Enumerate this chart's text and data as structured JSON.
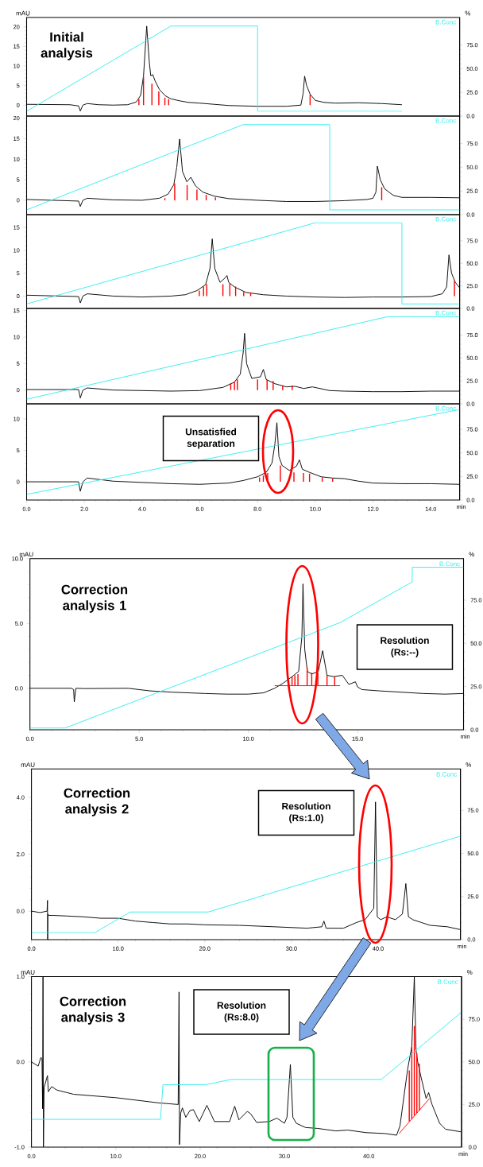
{
  "chart_data": [
    {
      "type": "line",
      "title": "Initial analysis",
      "ylabel": "mAU",
      "y2label": "%",
      "legend": "top right",
      "tick_labels": [
        "y",
        "y2"
      ],
      "xlim": [
        0,
        15
      ],
      "ylim": [
        -2.8,
        22.4
      ],
      "y2lim": [
        0,
        104
      ],
      "yticks": [
        0,
        5,
        10,
        15,
        20
      ],
      "y2ticks": [
        {
          "value": 0,
          "label": "0.0"
        },
        {
          "value": 25,
          "label": "25.0"
        },
        {
          "value": 50,
          "label": "50.0"
        },
        {
          "value": 75,
          "label": "75.0"
        }
      ],
      "series": [
        {
          "color": "#000000",
          "x": [
            0,
            1.5,
            1.8,
            1.86,
            1.95,
            2.1,
            2.5,
            3.0,
            3.5,
            3.8,
            3.95,
            4.05,
            4.16,
            4.25,
            4.3,
            4.37,
            4.45,
            4.6,
            4.8,
            5.0,
            5.3,
            5.6,
            6.0,
            6.5,
            7.0,
            8.0,
            9.0,
            9.5,
            9.58,
            9.63,
            9.7,
            9.82,
            10.0,
            10.3,
            10.7,
            11.5,
            12.3,
            13.0
          ],
          "values": [
            0.2,
            0.1,
            -0.2,
            -1.5,
            0,
            0.4,
            0.1,
            0,
            0.1,
            0.8,
            2.5,
            7.5,
            20.2,
            11,
            7.5,
            7.8,
            6.2,
            4,
            2.4,
            1.6,
            1.1,
            0.7,
            0.5,
            0.2,
            -0.1,
            -0.3,
            -0.3,
            0.0,
            3.0,
            7.4,
            5.0,
            2.8,
            1.2,
            0.7,
            0.5,
            0.6,
            0.4,
            0.1
          ]
        },
        {
          "name": "B.Conc",
          "axis": "y2",
          "color": "#33eeee",
          "x": [
            0,
            5,
            8,
            8,
            13
          ],
          "values": [
            5,
            95,
            95,
            5,
            5
          ]
        },
        {
          "type": "bar",
          "color": "#ff0000",
          "x": [
            3.89,
            4.05,
            4.34,
            4.58,
            4.79,
            4.92,
            9.82
          ],
          "values": [
            1.5,
            7.3,
            5.5,
            3.5,
            1.9,
            1.5,
            2.7
          ]
        }
      ]
    },
    {
      "type": "line",
      "legend": "top right",
      "tick_labels": [
        "y",
        "y2"
      ],
      "xlim": [
        0,
        15
      ],
      "ylim": [
        -3.5,
        20.5
      ],
      "y2lim": [
        0,
        104
      ],
      "yticks": [
        0,
        5,
        10,
        15,
        20
      ],
      "y2ticks": [
        {
          "value": 0,
          "label": "0.0"
        },
        {
          "value": 25,
          "label": "25.0"
        },
        {
          "value": 50,
          "label": "50.0"
        },
        {
          "value": 75,
          "label": "75.0"
        }
      ],
      "series": [
        {
          "color": "#000000",
          "x": [
            0,
            1.8,
            1.86,
            1.95,
            2.1,
            3,
            4,
            4.6,
            4.9,
            5.1,
            5.2,
            5.3,
            5.4,
            5.55,
            5.69,
            5.85,
            6.1,
            6.5,
            7,
            8,
            9,
            10,
            11,
            11.8,
            12.0,
            12.1,
            12.15,
            12.25,
            12.4,
            12.7,
            13,
            14,
            15
          ],
          "values": [
            0.2,
            -0.2,
            -1.5,
            0,
            0.5,
            0.1,
            0,
            0.5,
            1.5,
            3.8,
            8,
            14.9,
            7,
            4.5,
            5.6,
            3.5,
            2,
            1,
            0.4,
            0,
            -0.3,
            -0.3,
            -0.1,
            0.2,
            0.5,
            2,
            8.3,
            5,
            2.8,
            1.2,
            0.7,
            0.7,
            0.6
          ]
        },
        {
          "name": "B.Conc",
          "axis": "y2",
          "color": "#33eeee",
          "x": [
            0,
            7.5,
            10.5,
            10.5,
            15
          ],
          "values": [
            5,
            95,
            95,
            5,
            5
          ]
        },
        {
          "type": "bar",
          "color": "#ff0000",
          "x": [
            4.79,
            5.13,
            5.56,
            5.9,
            6.22,
            6.54,
            12.3
          ],
          "values": [
            0.5,
            4.1,
            3.7,
            2.6,
            1.3,
            0.7,
            3.2
          ]
        }
      ]
    },
    {
      "type": "line",
      "legend": "top right",
      "tick_labels": [
        "y",
        "y2"
      ],
      "xlim": [
        0,
        15
      ],
      "ylim": [
        -2.7,
        17.8
      ],
      "y2lim": [
        0,
        104
      ],
      "yticks": [
        0,
        5,
        10,
        15
      ],
      "y2ticks": [
        {
          "value": 0,
          "label": "0.0"
        },
        {
          "value": 25,
          "label": "25.0"
        },
        {
          "value": 50,
          "label": "50.0"
        },
        {
          "value": 75,
          "label": "75.0"
        }
      ],
      "series": [
        {
          "color": "#000000",
          "x": [
            0,
            1.8,
            1.86,
            1.95,
            2.1,
            3,
            4,
            5,
            5.5,
            5.9,
            6.2,
            6.35,
            6.43,
            6.52,
            6.7,
            6.88,
            6.94,
            7.0,
            7.2,
            7.6,
            8.2,
            9,
            10,
            11,
            12,
            13,
            14,
            14.4,
            14.55,
            14.63,
            14.72,
            14.85,
            15
          ],
          "values": [
            0.2,
            -0.1,
            -1.5,
            0,
            0.5,
            0,
            -0.2,
            0,
            0.3,
            1.2,
            2.5,
            6,
            12.5,
            6,
            3,
            4,
            4.5,
            3,
            2,
            0.8,
            0.3,
            0,
            -0.2,
            -0.3,
            -0.2,
            -0.2,
            -0.1,
            0.5,
            2,
            9,
            5,
            3,
            1.8
          ]
        },
        {
          "name": "B.Conc",
          "axis": "y2",
          "color": "#33eeee",
          "x": [
            0,
            10,
            13,
            13,
            15
          ],
          "values": [
            5,
            95,
            95,
            5,
            5
          ]
        },
        {
          "type": "bar",
          "color": "#ff0000",
          "x": [
            5.98,
            6.13,
            6.24,
            6.8,
            7.04,
            7.24,
            7.52,
            7.76,
            14.82
          ],
          "values": [
            1.2,
            2.1,
            2.6,
            2.6,
            2.8,
            2.1,
            0.9,
            0.8,
            3.4
          ]
        }
      ]
    },
    {
      "type": "line",
      "legend": "top right",
      "tick_labels": [
        "y",
        "y2"
      ],
      "xlim": [
        0,
        15
      ],
      "ylim": [
        -2.6,
        15.4
      ],
      "y2lim": [
        0,
        104
      ],
      "yticks": [
        0,
        5,
        10,
        15
      ],
      "y2ticks": [
        {
          "value": 0,
          "label": "0.0"
        },
        {
          "value": 25,
          "label": "25.0"
        },
        {
          "value": 50,
          "label": "50.0"
        },
        {
          "value": 75,
          "label": "75.0"
        }
      ],
      "series": [
        {
          "color": "#000000",
          "x": [
            0,
            1.8,
            1.86,
            1.95,
            2.1,
            3,
            4,
            5,
            6,
            6.8,
            7.2,
            7.4,
            7.5,
            7.55,
            7.62,
            7.8,
            8.1,
            8.2,
            8.3,
            8.6,
            9,
            9.3,
            9.6,
            9.9,
            10.5,
            11,
            12,
            13,
            14,
            15
          ],
          "values": [
            0.1,
            0.1,
            -1.5,
            0,
            0.4,
            0,
            -0.1,
            -0.2,
            -0.1,
            0.5,
            1.5,
            3,
            7,
            10.7,
            5,
            2.2,
            2.5,
            3.9,
            2,
            1.2,
            0.6,
            0.7,
            0.3,
            0.6,
            -0.1,
            -0.2,
            -0.3,
            -0.3,
            -0.2,
            -0.2
          ]
        },
        {
          "name": "B.Conc",
          "axis": "y2",
          "color": "#33eeee",
          "x": [
            0,
            12.5,
            15
          ],
          "values": [
            5,
            95,
            95
          ]
        },
        {
          "type": "bar",
          "color": "#ff0000",
          "x": [
            7.07,
            7.2,
            7.3,
            8.0,
            8.33,
            8.54,
            8.87,
            9.2
          ],
          "values": [
            1.3,
            1.6,
            2,
            2,
            1.9,
            1.7,
            0.9,
            0.9
          ]
        }
      ]
    },
    {
      "type": "line",
      "xlabel": "min",
      "legend": "top right",
      "annotations": [
        "Unsatisfied separation"
      ],
      "xlim": [
        0,
        15
      ],
      "ylim": [
        -2.9,
        12.4
      ],
      "y2lim": [
        0,
        102
      ],
      "xticks": [
        {
          "value": 0,
          "label": "0.0"
        },
        {
          "value": 2,
          "label": "2.0"
        },
        {
          "value": 4,
          "label": "4.0"
        },
        {
          "value": 6,
          "label": "6.0"
        },
        {
          "value": 8,
          "label": "8.0"
        },
        {
          "value": 10,
          "label": "10.0"
        },
        {
          "value": 12,
          "label": "12.0"
        },
        {
          "value": 14,
          "label": "14.0"
        }
      ],
      "yticks": [
        0,
        5,
        10
      ],
      "y2ticks": [
        {
          "value": 0,
          "label": "0.0"
        },
        {
          "value": 25,
          "label": "25.0"
        },
        {
          "value": 50,
          "label": "50.0"
        },
        {
          "value": 75,
          "label": "75.0"
        }
      ],
      "series": [
        {
          "color": "#000000",
          "x": [
            0,
            1.8,
            1.86,
            1.95,
            2.1,
            3,
            4,
            5,
            6,
            7,
            7.5,
            8,
            8.3,
            8.5,
            8.6,
            8.67,
            8.74,
            8.85,
            9.1,
            9.35,
            9.45,
            9.55,
            9.8,
            10.2,
            10.6,
            11,
            11.5,
            12,
            13,
            14,
            15
          ],
          "values": [
            0,
            0,
            -1.5,
            0,
            0.6,
            0.1,
            -0.1,
            -0.3,
            -0.4,
            -0.2,
            0.2,
            0.8,
            1.5,
            3,
            6,
            9.4,
            4,
            2.6,
            1.8,
            2.5,
            3.5,
            2,
            1.5,
            0.8,
            0.6,
            0.5,
            0.1,
            -0.2,
            -0.3,
            -0.3,
            -0.4
          ]
        },
        {
          "name": "B.Conc",
          "axis": "y2",
          "color": "#33eeee",
          "x": [
            0,
            15
          ],
          "values": [
            6,
            96
          ]
        },
        {
          "type": "bar",
          "color": "#ff0000",
          "x": [
            8.07,
            8.2,
            8.35,
            8.79,
            9.26,
            9.59,
            9.8,
            10.24,
            10.6
          ],
          "values": [
            0.7,
            1.0,
            1.4,
            2.6,
            1.5,
            1.4,
            1.3,
            0.7,
            0.5
          ]
        }
      ]
    },
    {
      "type": "line",
      "title": "Correction analysis 1",
      "xlabel": "min",
      "ylabel": "mAU",
      "y2label": "%",
      "legend": "top right",
      "annotations": [
        "Resolution (Rs:--)"
      ],
      "xlim": [
        0,
        19.85
      ],
      "ylim": [
        -3.2,
        10
      ],
      "y2lim": [
        0,
        99
      ],
      "xticks": [
        {
          "value": 0,
          "label": "0.0"
        },
        {
          "value": 5,
          "label": "5.0"
        },
        {
          "value": 10,
          "label": "10.0"
        },
        {
          "value": 15,
          "label": "15.0"
        }
      ],
      "yticks": [
        {
          "value": 0,
          "label": "0.0"
        },
        {
          "value": 5,
          "label": "5.0"
        },
        {
          "value": 10,
          "label": "10.0"
        }
      ],
      "y2ticks": [
        {
          "value": 0,
          "label": "0.0"
        },
        {
          "value": 25,
          "label": "25.0"
        },
        {
          "value": 50,
          "label": "50.0"
        },
        {
          "value": 75,
          "label": "75.0"
        }
      ],
      "series": [
        {
          "color": "#000000",
          "x": [
            0,
            1.9,
            2.0,
            2.03,
            2.1,
            2.5,
            4.5,
            5.5,
            6.5,
            8,
            9,
            10,
            10.7,
            11.2,
            11.6,
            12.0,
            12.3,
            12.45,
            12.5,
            12.58,
            12.7,
            12.9,
            13.2,
            13.4,
            13.6,
            13.9,
            14.3,
            14.6,
            14.9,
            15.0,
            15.2,
            16,
            17,
            18,
            19,
            19.85
          ],
          "values": [
            0,
            0,
            -0.1,
            -1.05,
            0,
            -0.02,
            0,
            -0.2,
            -0.3,
            -0.4,
            -0.45,
            -0.45,
            -0.35,
            0.0,
            0.4,
            0.9,
            1.3,
            4,
            8.05,
            3,
            1.3,
            1.1,
            1.3,
            2.9,
            1.0,
            0.9,
            1.0,
            0.3,
            0.5,
            0.1,
            -0.1,
            -0.2,
            -0.3,
            -0.4,
            -0.45,
            -0.4
          ]
        },
        {
          "name": "B.Conc",
          "axis": "y2",
          "color": "#33eeee",
          "x": [
            0,
            1.6,
            14.2,
            17.5,
            17.5,
            19.85
          ],
          "values": [
            1,
            1,
            62,
            85.5,
            94,
            94
          ]
        },
        {
          "color": "#ff0000",
          "x": [
            11.2,
            14.2
          ],
          "values": [
            0.2,
            0.2
          ]
        },
        {
          "type": "bar",
          "color": "#ff0000",
          "x": [
            12.0,
            12.13,
            12.27,
            12.69,
            12.9,
            13.18,
            13.6,
            13.95
          ],
          "base": [
            0.2,
            0.2,
            0.2,
            0.2,
            0.2,
            0.2,
            0.2,
            0.2
          ],
          "values": [
            0.7,
            0.8,
            0.9,
            1.4,
            1.0,
            1.0,
            0.8,
            0.7
          ]
        }
      ]
    },
    {
      "type": "line",
      "title": "Correction analysis 2",
      "xlabel": "min",
      "ylabel": "mAU",
      "y2label": "%",
      "legend": "top right",
      "annotations": [
        "Resolution (Rs:1.0)"
      ],
      "xlim": [
        0,
        49.5
      ],
      "ylim": [
        -1,
        5
      ],
      "y2lim": [
        0,
        99
      ],
      "xticks": [
        {
          "value": 0,
          "label": "0.0"
        },
        {
          "value": 10,
          "label": "10.0"
        },
        {
          "value": 20,
          "label": "20.0"
        },
        {
          "value": 30,
          "label": "30.0"
        },
        {
          "value": 40,
          "label": "40.0"
        }
      ],
      "yticks": [
        {
          "value": 0,
          "label": "0.0"
        },
        {
          "value": 2,
          "label": "2.0"
        },
        {
          "value": 4,
          "label": "4.0"
        }
      ],
      "y2ticks": [
        {
          "value": 0,
          "label": "0.0"
        },
        {
          "value": 25,
          "label": "25.0"
        },
        {
          "value": 50,
          "label": "50.0"
        },
        {
          "value": 75,
          "label": "75.0"
        }
      ],
      "series": [
        {
          "color": "#000000",
          "x": [
            0,
            1.0,
            1.8,
            1.85,
            1.87,
            1.9,
            2.0,
            2.5,
            4,
            6,
            8,
            10,
            12,
            14,
            16,
            18,
            20,
            24,
            28,
            31.8,
            33.5,
            33.75,
            34,
            36,
            37.5,
            38.5,
            39.0,
            39.5,
            39.7,
            39.9,
            40.3,
            41,
            42,
            42.8,
            43.2,
            43.5,
            44,
            45,
            46,
            48,
            49.5
          ],
          "values": [
            0,
            -0.05,
            0.0,
            0.38,
            -1.0,
            -0.1,
            -0.15,
            -0.15,
            -0.17,
            -0.2,
            -0.25,
            -0.25,
            -0.35,
            -0.4,
            -0.45,
            -0.45,
            -0.48,
            -0.5,
            -0.55,
            -0.6,
            -0.55,
            -0.35,
            -0.6,
            -0.6,
            -0.4,
            -0.3,
            -0.1,
            0.1,
            3.84,
            -0.2,
            -0.3,
            -0.2,
            -0.3,
            -0.1,
            0.97,
            -0.2,
            -0.3,
            -0.4,
            -0.5,
            -0.55,
            -0.65
          ]
        },
        {
          "name": "B.Conc",
          "axis": "y2",
          "color": "#33eeee",
          "x": [
            0,
            7.3,
            11.4,
            20.4,
            49.5
          ],
          "values": [
            4,
            4,
            16,
            16,
            60
          ]
        }
      ]
    },
    {
      "type": "line",
      "title": "Correction analysis 3",
      "xlabel": "min",
      "ylabel": "mAU",
      "y2label": "%",
      "legend": "top right",
      "annotations": [
        "Resolution (Rs:8.0)"
      ],
      "xlim": [
        0,
        51
      ],
      "ylim": [
        -1,
        1
      ],
      "y2lim": [
        0,
        100
      ],
      "xticks": [
        {
          "value": 0,
          "label": "0.0"
        },
        {
          "value": 10,
          "label": "10.0"
        },
        {
          "value": 20,
          "label": "20.0"
        },
        {
          "value": 30,
          "label": "30.0"
        },
        {
          "value": 40,
          "label": "40.0"
        }
      ],
      "yticks": [
        {
          "value": -1,
          "label": "-1.0"
        },
        {
          "value": 0,
          "label": "0.0"
        },
        {
          "value": 1,
          "label": "1.0"
        }
      ],
      "y2ticks": [
        {
          "value": 0,
          "label": "0.0"
        },
        {
          "value": 25,
          "label": "25.0"
        },
        {
          "value": 50,
          "label": "50.0"
        },
        {
          "value": 75,
          "label": "75.0"
        }
      ],
      "series": [
        {
          "color": "#000000",
          "x": [
            0,
            0.8,
            1.1,
            1.25,
            1.32,
            1.37,
            1.42,
            1.5,
            1.9,
            2.0,
            2.4,
            3,
            5,
            10,
            15,
            17.4,
            17.5,
            17.55,
            17.7,
            17.9,
            18.3,
            18.8,
            19.2,
            19.9,
            20.8,
            21.7,
            23.5,
            24.1,
            24.6,
            25.6,
            26.0,
            26.7,
            28.2,
            29.1,
            30.0,
            30.3,
            30.7,
            31.0,
            31.4,
            32.5,
            33.9,
            36.1,
            37.5,
            39.7,
            41.9,
            43.3,
            43.7,
            44.6,
            45.1,
            45.4,
            45.6,
            45.8,
            46.2,
            46.8,
            47.1,
            47.5,
            48.4,
            49.1,
            50.9
          ],
          "values": [
            0,
            -0.05,
            0.05,
            0.04,
            -0.55,
            1.0,
            -1.0,
            -0.3,
            -0.16,
            -0.35,
            -0.29,
            -0.33,
            -0.38,
            -0.42,
            -0.48,
            -0.5,
            0.82,
            -0.97,
            -0.6,
            -0.54,
            -0.65,
            -0.57,
            -0.56,
            -0.7,
            -0.51,
            -0.7,
            -0.7,
            -0.52,
            -0.68,
            -0.58,
            -0.61,
            -0.71,
            -0.7,
            -0.66,
            -0.72,
            -0.65,
            -0.03,
            -0.65,
            -0.72,
            -0.77,
            -0.78,
            -0.81,
            -0.8,
            -0.83,
            -0.84,
            -0.86,
            -0.75,
            -0.09,
            0.18,
            1.0,
            0.14,
            0.0,
            -0.18,
            -0.43,
            -0.36,
            -0.5,
            -0.72,
            -0.79,
            -0.82
          ]
        },
        {
          "name": "B.Conc",
          "axis": "y2",
          "color": "#33eeee",
          "x": [
            0,
            15.3,
            15.6,
            20.6,
            23.7,
            41.5,
            50.9
          ],
          "values": [
            16.3,
            16.3,
            36.6,
            36.6,
            39.7,
            39.7,
            78.8
          ]
        },
        {
          "color": "#ff0000",
          "x": [
            43.6,
            47.2
          ],
          "values": [
            -0.84,
            -0.43
          ]
        },
        {
          "type": "bar",
          "color": "#ff0000",
          "x": [
            44.8,
            45.1,
            45.4,
            45.7,
            46.0
          ],
          "base": [
            -0.7,
            -0.67,
            -0.63,
            -0.6,
            -0.57
          ],
          "values": [
            0.6,
            0.85,
            1.05,
            0.7,
            0.55
          ]
        }
      ]
    }
  ]
}
